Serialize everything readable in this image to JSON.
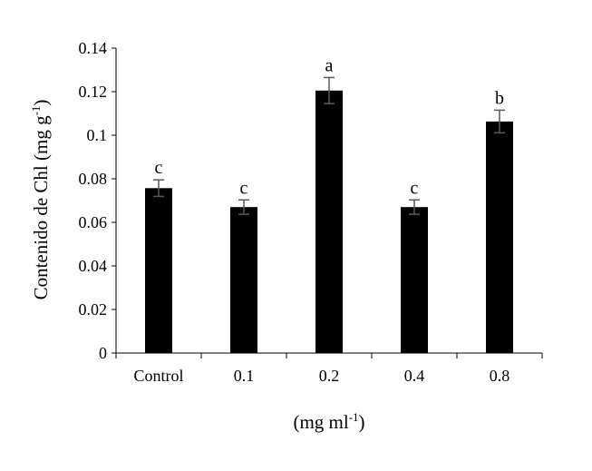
{
  "chart_data": {
    "type": "bar",
    "categories": [
      "Control",
      "0.1",
      "0.2",
      "0.4",
      "0.8"
    ],
    "values": [
      0.0757,
      0.067,
      0.1205,
      0.067,
      0.1063
    ],
    "errors": [
      0.0038,
      0.0033,
      0.006,
      0.0033,
      0.0052
    ],
    "significance_letters": [
      "c",
      "c",
      "a",
      "c",
      "b"
    ],
    "ylim": [
      0,
      0.14
    ],
    "yticks": [
      "0",
      "0.02",
      "0.04",
      "0.06",
      "0.08",
      "0.1",
      "0.12",
      "0.14"
    ],
    "ylabel": {
      "text": "Contenido de Chl (mg g",
      "superscript": "-1",
      "suffix": ")"
    },
    "xlabel": {
      "text": "(mg ml",
      "superscript": "-1",
      "suffix": ")"
    },
    "grid": false,
    "legend": "none",
    "colors": {
      "bar": "#000000",
      "axis": "#000000",
      "error_bar": "#595959"
    }
  }
}
